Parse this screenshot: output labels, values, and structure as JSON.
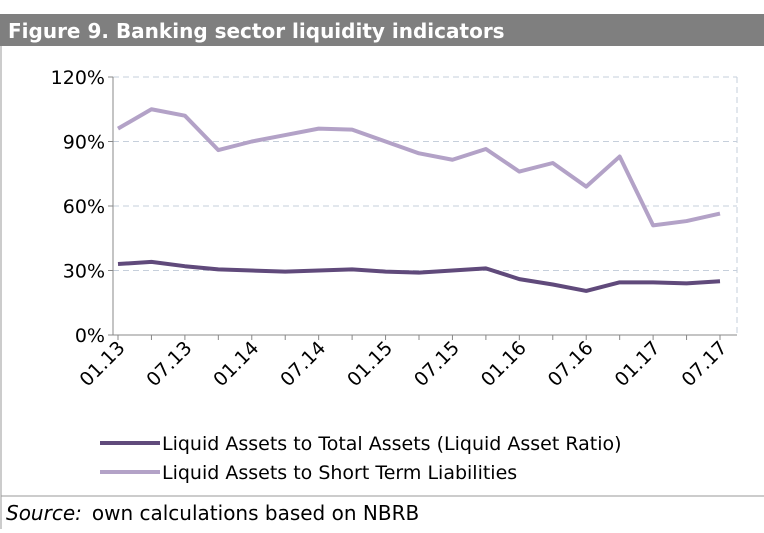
{
  "chart_data": {
    "type": "line",
    "title": "Figure 9. Banking sector liquidity indicators",
    "categories": [
      "01.13",
      null,
      "07.13",
      null,
      "01.14",
      null,
      "07.14",
      null,
      "01.15",
      null,
      "07.15",
      null,
      "01.16",
      null,
      "07.16",
      null,
      "01.17",
      null,
      "07.17"
    ],
    "series": [
      {
        "name": "Liquid Assets to Total Assets (Liquid Asset Ratio)",
        "color": "#604a7b",
        "values": [
          33,
          34,
          32,
          30.5,
          30,
          29.5,
          30,
          30.5,
          29.5,
          29,
          30,
          31,
          26,
          23.5,
          20.5,
          24.5,
          24.5,
          24,
          25
        ]
      },
      {
        "name": "Liquid Assets to Short Term Liabilities",
        "color": "#b3a2c7",
        "values": [
          96,
          105,
          102,
          86,
          90,
          93,
          96,
          95.5,
          90,
          84.5,
          81.5,
          86.5,
          76,
          80,
          69,
          83,
          51,
          53,
          56.5
        ]
      }
    ],
    "ylim": [
      0,
      120
    ],
    "yticks": [
      {
        "value": 0,
        "label": "0%"
      },
      {
        "value": 30,
        "label": "30%"
      },
      {
        "value": 60,
        "label": "60%"
      },
      {
        "value": 90,
        "label": "90%"
      },
      {
        "value": 120,
        "label": "120%"
      }
    ],
    "grid": true,
    "legend": "bottom",
    "source_label": "Source:",
    "source_text": "own calculations based on NBRB"
  }
}
